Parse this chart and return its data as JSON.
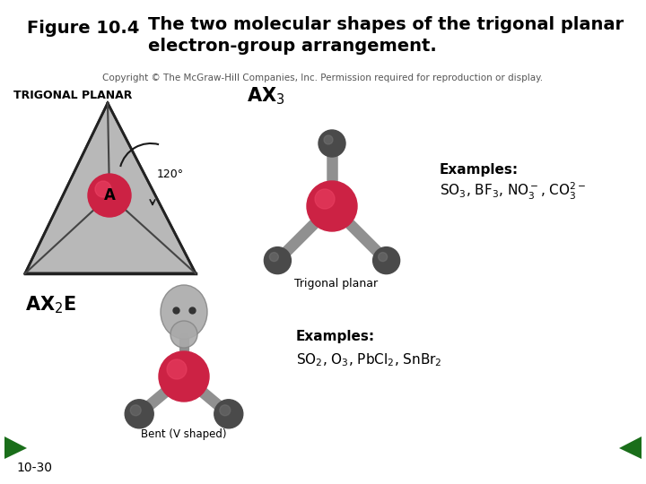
{
  "title_label": "Figure 10.4",
  "title_text_line1": "The two molecular shapes of the trigonal planar",
  "title_text_line2": "electron-group arrangement.",
  "copyright_text": "Copyright © The McGraw-Hill Companies, Inc. Permission required for reproduction or display.",
  "trigonal_planar_label": "TRIGONAL PLANAR",
  "ax3_label": "AX$_3$",
  "ax2e_label": "AX$_2$E",
  "trigonal_planar_caption": "Trigonal planar",
  "bent_caption": "Bent (V shaped)",
  "angle_label": "120°",
  "center_atom_label": "A",
  "examples1_title": "Examples:",
  "examples2_title": "Examples:",
  "bg_color": "#ffffff",
  "arrow_color": "#1a1a1a",
  "triangle_fill": "#b8b8b8",
  "triangle_edge": "#3a3a3a",
  "center_atom_color": "#cc2244",
  "ligand_color": "#555555",
  "green_color": "#1a6e1a",
  "slide_number": "10-30",
  "title_fontsize": 14,
  "small_fontsize": 7.5
}
